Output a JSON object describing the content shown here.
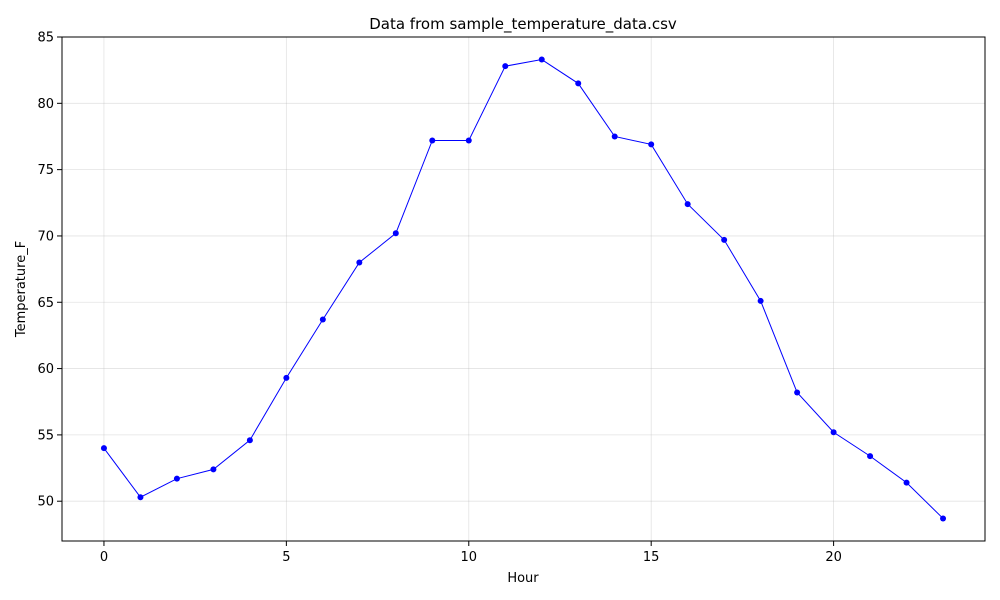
{
  "chart_data": {
    "type": "line",
    "title": "Data from sample_temperature_data.csv",
    "xlabel": "Hour",
    "ylabel": "Temperature_F",
    "xlim": [
      -1.15,
      24.15
    ],
    "ylim": [
      47.0,
      85.0
    ],
    "xticks": [
      0,
      5,
      10,
      15,
      20
    ],
    "yticks": [
      50,
      55,
      60,
      65,
      70,
      75,
      80,
      85
    ],
    "grid": true,
    "color": "#0000ff",
    "x": [
      0,
      1,
      2,
      3,
      4,
      5,
      6,
      7,
      8,
      9,
      10,
      11,
      12,
      13,
      14,
      15,
      16,
      17,
      18,
      19,
      20,
      21,
      22,
      23
    ],
    "series": [
      {
        "values": [
          54.0,
          50.3,
          51.7,
          52.4,
          54.6,
          59.3,
          63.7,
          68.0,
          70.2,
          77.2,
          77.2,
          82.8,
          83.3,
          81.5,
          77.5,
          76.9,
          72.4,
          69.7,
          65.1,
          58.2,
          55.2,
          53.4,
          51.4,
          48.7
        ]
      }
    ]
  }
}
